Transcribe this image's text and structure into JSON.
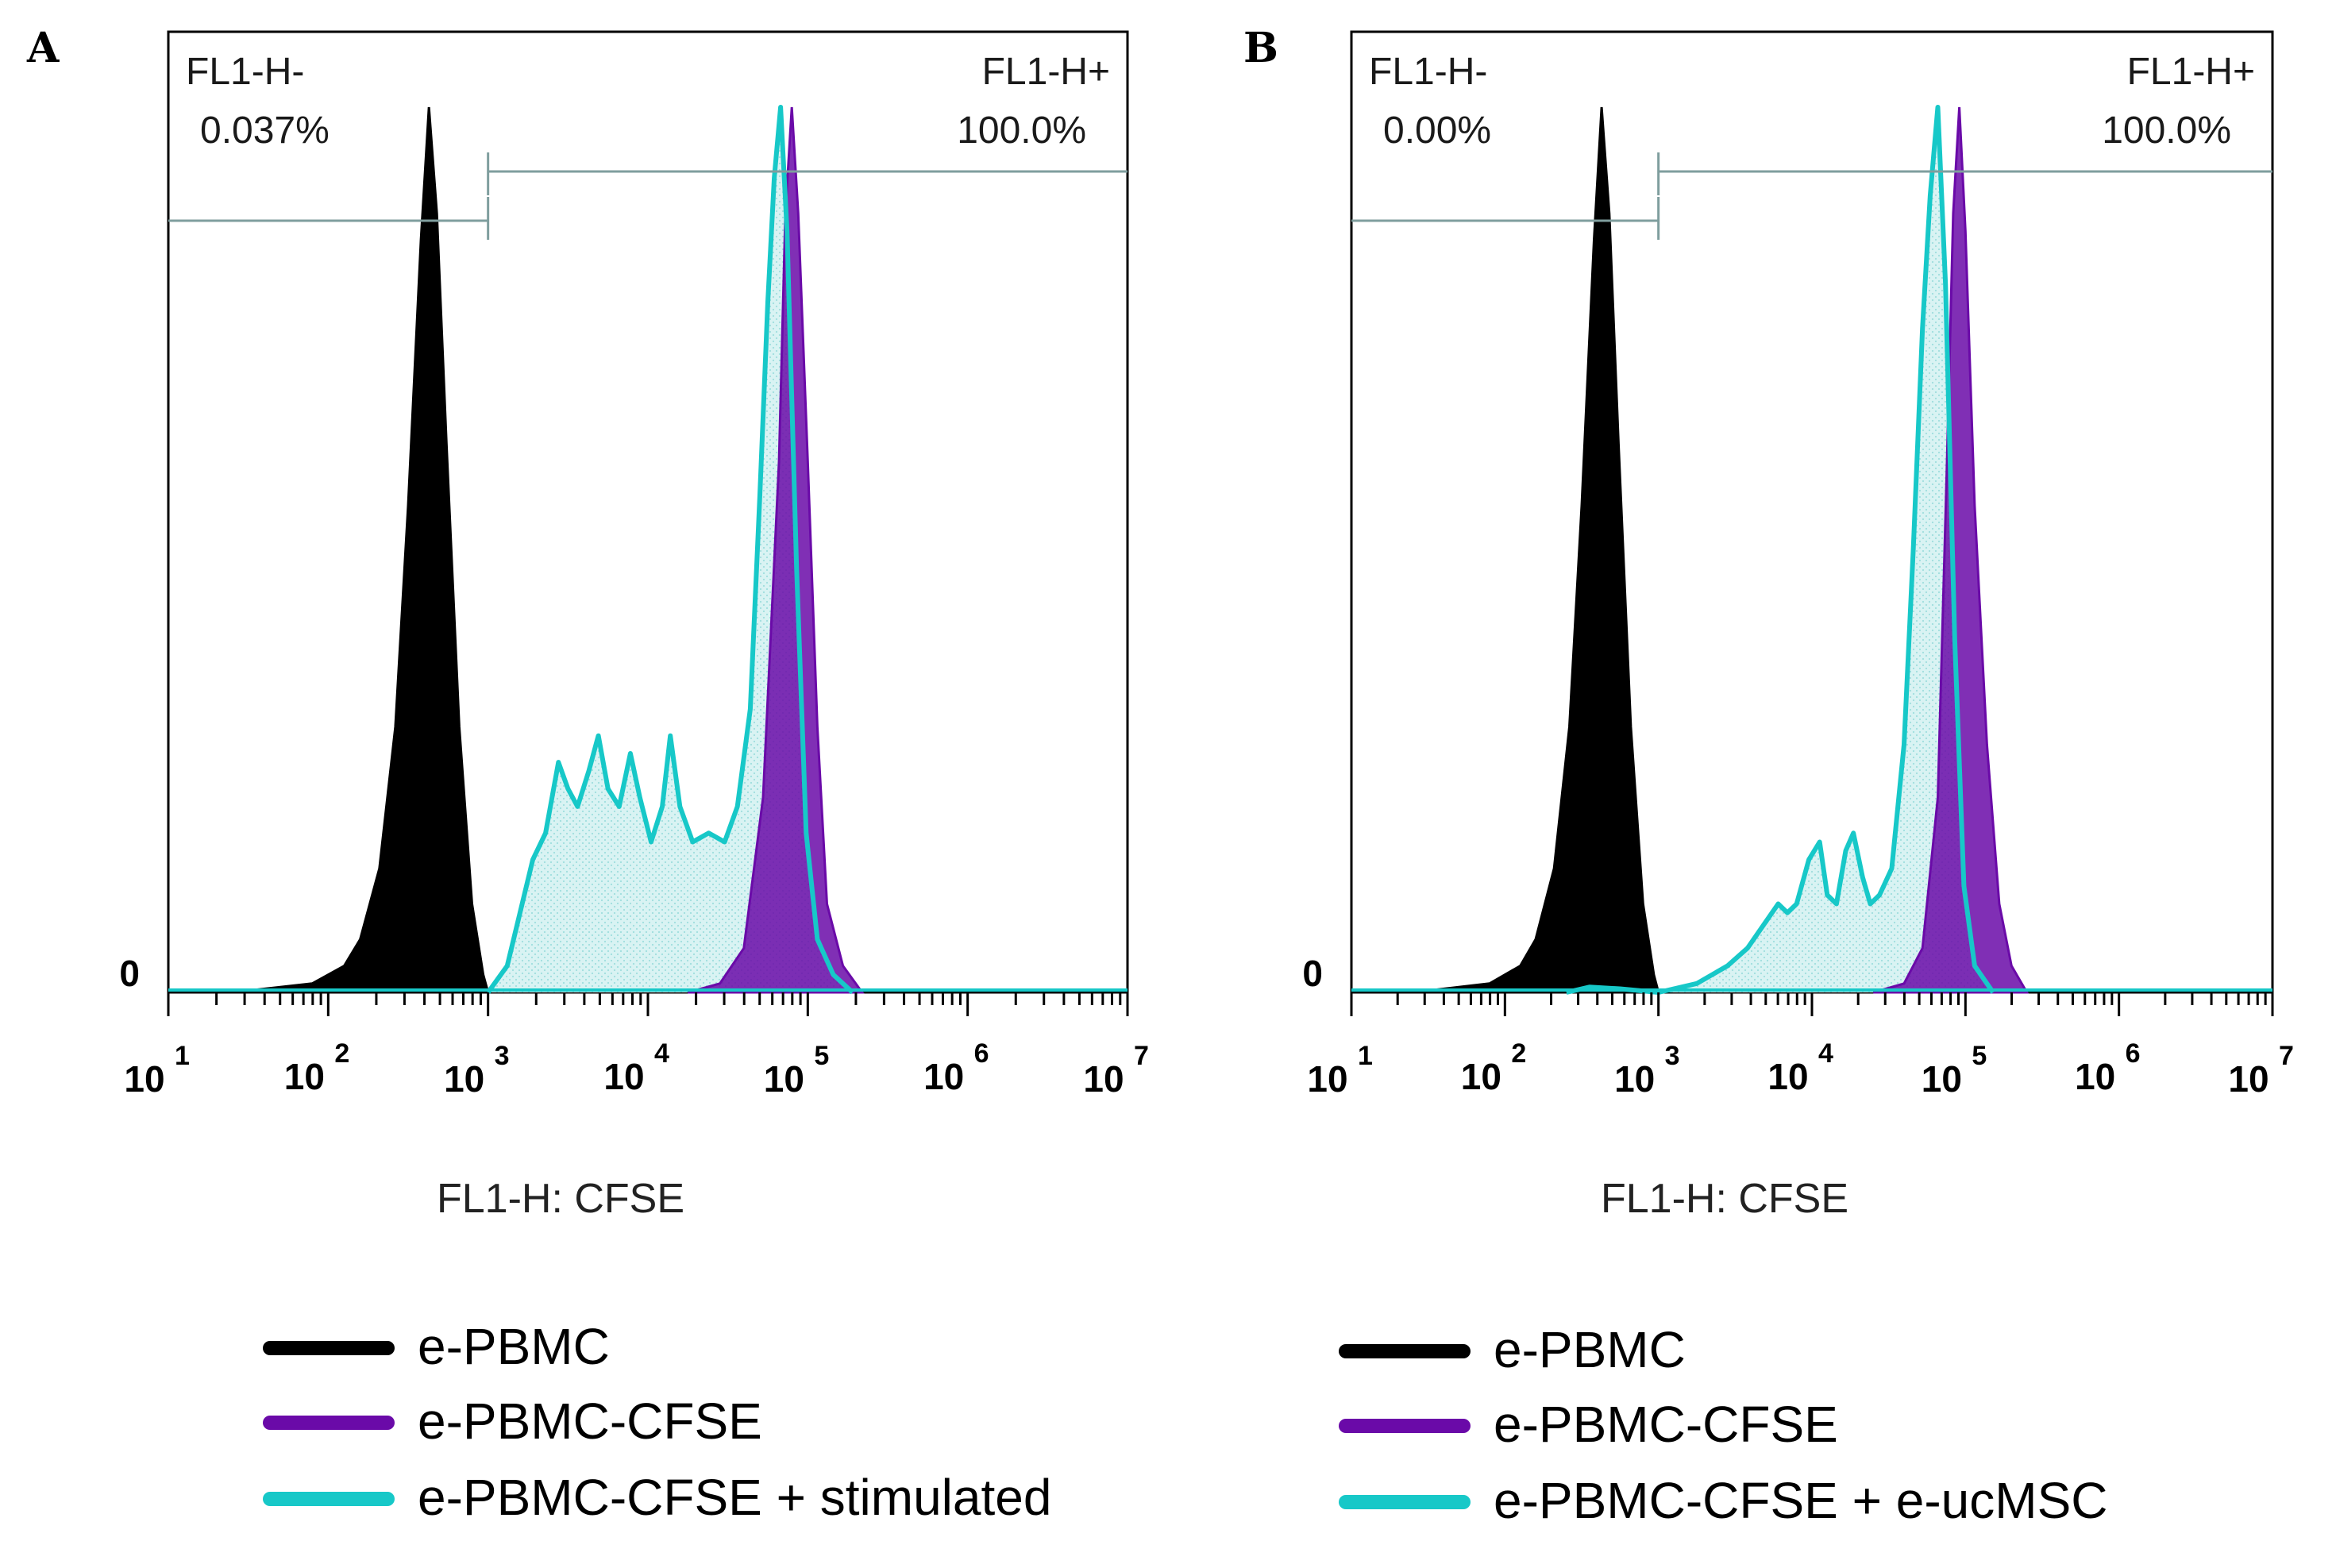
{
  "colors": {
    "e_pbmc": "#000000",
    "e_pbmc_cfse": "#6a0aa8",
    "cyan_line": "#17c8c8",
    "cyan_fill": "#d9f3f3",
    "gate": "#7f9e9e"
  },
  "chart_data": [
    {
      "type": "area",
      "panel": "A",
      "xlabel": "FL1-H: CFSE",
      "ylabel": "",
      "x_scale": "log10",
      "xlim": [
        10,
        10000000
      ],
      "ylim": [
        0,
        100
      ],
      "y_tick_label": "0",
      "x_ticks": [
        {
          "base": "10",
          "exp": "1",
          "value": 10
        },
        {
          "base": "10",
          "exp": "2",
          "value": 100
        },
        {
          "base": "10",
          "exp": "3",
          "value": 1000
        },
        {
          "base": "10",
          "exp": "4",
          "value": 10000
        },
        {
          "base": "10",
          "exp": "5",
          "value": 100000
        },
        {
          "base": "10",
          "exp": "6",
          "value": 1000000
        },
        {
          "base": "10",
          "exp": "7",
          "value": 10000000
        }
      ],
      "gates": [
        {
          "name": "FL1-H-",
          "value": "0.037%",
          "from": 10,
          "to": 1000
        },
        {
          "name": "FL1-H+",
          "value": "100.0%",
          "from": 1000,
          "to": 10000000
        }
      ],
      "series": [
        {
          "name": "e-PBMC",
          "style": "filled",
          "points": [
            [
              1.4,
              0
            ],
            [
              1.9,
              1
            ],
            [
              2.1,
              3
            ],
            [
              2.2,
              6
            ],
            [
              2.32,
              14
            ],
            [
              2.42,
              30
            ],
            [
              2.5,
              55
            ],
            [
              2.58,
              85
            ],
            [
              2.63,
              100
            ],
            [
              2.68,
              88
            ],
            [
              2.74,
              62
            ],
            [
              2.82,
              30
            ],
            [
              2.9,
              10
            ],
            [
              2.97,
              2
            ],
            [
              3.0,
              0
            ]
          ]
        },
        {
          "name": "e-PBMC-CFSE",
          "style": "filled",
          "points": [
            [
              4.25,
              0
            ],
            [
              4.45,
              1
            ],
            [
              4.6,
              5
            ],
            [
              4.72,
              22
            ],
            [
              4.82,
              60
            ],
            [
              4.86,
              88
            ],
            [
              4.9,
              100
            ],
            [
              4.94,
              88
            ],
            [
              5.0,
              60
            ],
            [
              5.06,
              30
            ],
            [
              5.12,
              10
            ],
            [
              5.22,
              3
            ],
            [
              5.34,
              0
            ]
          ]
        },
        {
          "name": "e-PBMC-CFSE + stimulated",
          "style": "outline",
          "points": [
            [
              3.0,
              0
            ],
            [
              3.12,
              3
            ],
            [
              3.2,
              9
            ],
            [
              3.28,
              15
            ],
            [
              3.36,
              18
            ],
            [
              3.44,
              26
            ],
            [
              3.5,
              23
            ],
            [
              3.56,
              21
            ],
            [
              3.63,
              25
            ],
            [
              3.69,
              29
            ],
            [
              3.75,
              23
            ],
            [
              3.82,
              21
            ],
            [
              3.89,
              27
            ],
            [
              3.95,
              22
            ],
            [
              4.02,
              17
            ],
            [
              4.09,
              21
            ],
            [
              4.14,
              29
            ],
            [
              4.2,
              21
            ],
            [
              4.28,
              17
            ],
            [
              4.38,
              18
            ],
            [
              4.48,
              17
            ],
            [
              4.56,
              21
            ],
            [
              4.64,
              32
            ],
            [
              4.7,
              56
            ],
            [
              4.75,
              78
            ],
            [
              4.79,
              92
            ],
            [
              4.83,
              100
            ],
            [
              4.87,
              86
            ],
            [
              4.93,
              48
            ],
            [
              4.99,
              18
            ],
            [
              5.06,
              6
            ],
            [
              5.16,
              2
            ],
            [
              5.28,
              0
            ]
          ]
        }
      ],
      "legend": [
        "e-PBMC",
        "e-PBMC-CFSE",
        "e-PBMC-CFSE + stimulated"
      ]
    },
    {
      "type": "area",
      "panel": "B",
      "xlabel": "FL1-H: CFSE",
      "ylabel": "",
      "x_scale": "log10",
      "xlim": [
        10,
        10000000
      ],
      "ylim": [
        0,
        100
      ],
      "y_tick_label": "0",
      "x_ticks": [
        {
          "base": "10",
          "exp": "1",
          "value": 10
        },
        {
          "base": "10",
          "exp": "2",
          "value": 100
        },
        {
          "base": "10",
          "exp": "3",
          "value": 1000
        },
        {
          "base": "10",
          "exp": "4",
          "value": 10000
        },
        {
          "base": "10",
          "exp": "5",
          "value": 100000
        },
        {
          "base": "10",
          "exp": "6",
          "value": 1000000
        },
        {
          "base": "10",
          "exp": "7",
          "value": 10000000
        }
      ],
      "gates": [
        {
          "name": "FL1-H-",
          "value": "0.00%",
          "from": 10,
          "to": 1000
        },
        {
          "name": "FL1-H+",
          "value": "100.0%",
          "from": 1000,
          "to": 10000000
        }
      ],
      "series": [
        {
          "name": "e-PBMC",
          "style": "filled",
          "points": [
            [
              1.4,
              0
            ],
            [
              1.9,
              1
            ],
            [
              2.1,
              3
            ],
            [
              2.2,
              6
            ],
            [
              2.32,
              14
            ],
            [
              2.42,
              30
            ],
            [
              2.5,
              55
            ],
            [
              2.58,
              85
            ],
            [
              2.63,
              100
            ],
            [
              2.68,
              88
            ],
            [
              2.74,
              62
            ],
            [
              2.82,
              30
            ],
            [
              2.9,
              10
            ],
            [
              2.97,
              2
            ],
            [
              3.0,
              0
            ]
          ]
        },
        {
          "name": "e-PBMC-CFSE",
          "style": "filled",
          "points": [
            [
              4.4,
              0
            ],
            [
              4.6,
              1
            ],
            [
              4.72,
              5
            ],
            [
              4.82,
              22
            ],
            [
              4.88,
              60
            ],
            [
              4.92,
              88
            ],
            [
              4.96,
              100
            ],
            [
              5.0,
              86
            ],
            [
              5.06,
              55
            ],
            [
              5.14,
              28
            ],
            [
              5.22,
              10
            ],
            [
              5.3,
              3
            ],
            [
              5.4,
              0
            ]
          ]
        },
        {
          "name": "e-PBMC-CFSE + e-ucMSC",
          "style": "outline",
          "points": [
            [
              2.4,
              0
            ],
            [
              2.55,
              0.6
            ],
            [
              2.75,
              0.4
            ],
            [
              3.0,
              0
            ],
            [
              3.25,
              1
            ],
            [
              3.45,
              3
            ],
            [
              3.58,
              5
            ],
            [
              3.7,
              8
            ],
            [
              3.78,
              10
            ],
            [
              3.84,
              9
            ],
            [
              3.9,
              10
            ],
            [
              3.98,
              15
            ],
            [
              4.05,
              17
            ],
            [
              4.1,
              11
            ],
            [
              4.16,
              10
            ],
            [
              4.22,
              16
            ],
            [
              4.27,
              18
            ],
            [
              4.33,
              13
            ],
            [
              4.38,
              10
            ],
            [
              4.44,
              11
            ],
            [
              4.52,
              14
            ],
            [
              4.6,
              28
            ],
            [
              4.66,
              50
            ],
            [
              4.72,
              75
            ],
            [
              4.77,
              90
            ],
            [
              4.82,
              100
            ],
            [
              4.87,
              80
            ],
            [
              4.93,
              40
            ],
            [
              4.99,
              12
            ],
            [
              5.06,
              3
            ],
            [
              5.18,
              0
            ]
          ]
        }
      ],
      "legend": [
        "e-PBMC",
        "e-PBMC-CFSE",
        "e-PBMC-CFSE + e-ucMSC"
      ]
    }
  ]
}
